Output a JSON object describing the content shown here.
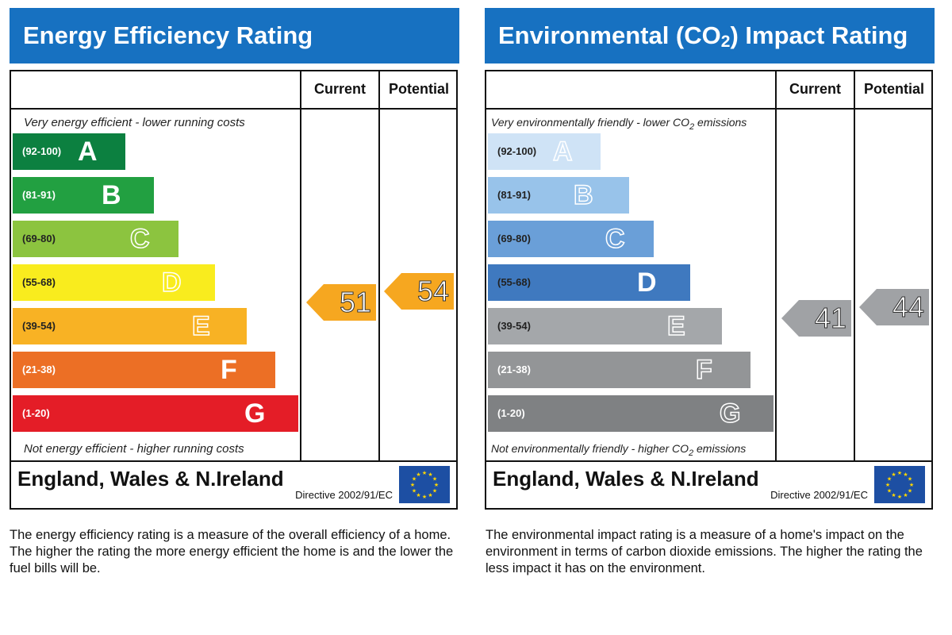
{
  "colors": {
    "title_bar": "#1771c1",
    "ee_bands": [
      "#0c8040",
      "#22a041",
      "#8cc43f",
      "#f9ec1e",
      "#f8b224",
      "#ec6f25",
      "#e41d27"
    ],
    "ei_bands": [
      "#cfe3f6",
      "#98c3ea",
      "#6a9fd8",
      "#3f79bf",
      "#a4a7aa",
      "#939597",
      "#7f8183"
    ],
    "ee_arrow": "#f6a720",
    "ei_arrow": "#a0a2a5"
  },
  "chart_data": [
    {
      "type": "bar",
      "title": "Energy Efficiency Rating",
      "column_headers": {
        "current": "Current",
        "potential": "Potential"
      },
      "top_caption": "Very energy efficient - lower running costs",
      "bottom_caption": "Not energy efficient - higher running costs",
      "bands": [
        {
          "range": "(92-100)",
          "letter": "A",
          "min": 92,
          "max": 100
        },
        {
          "range": "(81-91)",
          "letter": "B",
          "min": 81,
          "max": 91
        },
        {
          "range": "(69-80)",
          "letter": "C",
          "min": 69,
          "max": 80
        },
        {
          "range": "(55-68)",
          "letter": "D",
          "min": 55,
          "max": 68
        },
        {
          "range": "(39-54)",
          "letter": "E",
          "min": 39,
          "max": 54
        },
        {
          "range": "(21-38)",
          "letter": "F",
          "min": 21,
          "max": 38
        },
        {
          "range": "(1-20)",
          "letter": "G",
          "min": 1,
          "max": 20
        }
      ],
      "current": 51,
      "potential": 54,
      "current_label": "51",
      "potential_label": "54"
    },
    {
      "type": "bar",
      "title_pre": "Environmental (CO",
      "title_sub": "2",
      "title_post": ") Impact Rating",
      "column_headers": {
        "current": "Current",
        "potential": "Potential"
      },
      "top_caption_pre": "Very environmentally friendly - lower CO",
      "top_caption_sub": "2",
      "top_caption_post": " emissions",
      "bottom_caption_pre": "Not environmentally friendly - higher CO",
      "bottom_caption_sub": "2",
      "bottom_caption_post": " emissions",
      "bands": [
        {
          "range": "(92-100)",
          "letter": "A",
          "min": 92,
          "max": 100
        },
        {
          "range": "(81-91)",
          "letter": "B",
          "min": 81,
          "max": 91
        },
        {
          "range": "(69-80)",
          "letter": "C",
          "min": 69,
          "max": 80
        },
        {
          "range": "(55-68)",
          "letter": "D",
          "min": 55,
          "max": 68
        },
        {
          "range": "(39-54)",
          "letter": "E",
          "min": 39,
          "max": 54
        },
        {
          "range": "(21-38)",
          "letter": "F",
          "min": 21,
          "max": 38
        },
        {
          "range": "(1-20)",
          "letter": "G",
          "min": 1,
          "max": 20
        }
      ],
      "current": 41,
      "potential": 44,
      "current_label": "41",
      "potential_label": "44"
    }
  ],
  "footer": {
    "region": "England, Wales & N.Ireland",
    "directive": "Directive 2002/91/EC",
    "flag_icon": "eu-flag-icon"
  },
  "descriptions": {
    "energy": "The energy efficiency rating is a measure of the overall efficiency of a home. The higher the rating the more energy efficient the home is and the lower the fuel bills will be.",
    "environment": "The environmental impact rating is a measure of a home's impact on the environment in terms of carbon dioxide emissions. The higher the rating the less impact it has on the environment."
  }
}
